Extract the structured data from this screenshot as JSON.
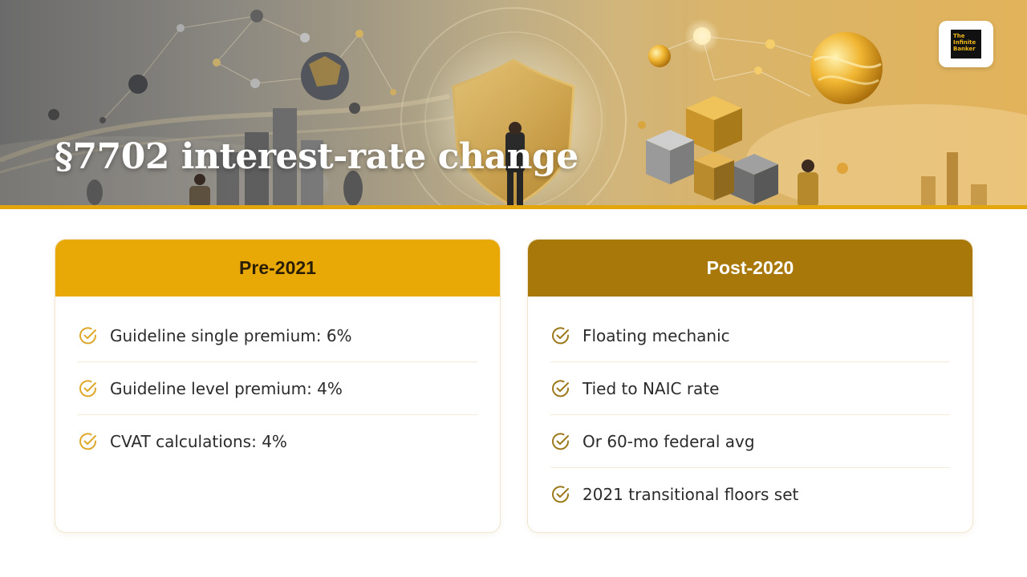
{
  "header": {
    "title": "§7702 interest-rate change",
    "logo_text": "The Infinite Banker"
  },
  "cards": [
    {
      "heading": "Pre-2021",
      "items": [
        "Guideline single premium: 6%",
        "Guideline level premium: 4%",
        "CVAT calculations: 4%"
      ]
    },
    {
      "heading": "Post-2020",
      "items": [
        "Floating mechanic",
        "Tied to NAIC rate",
        "Or 60-mo federal avg",
        "2021 transitional floors set"
      ]
    }
  ],
  "colors": {
    "accent": "#e8a806",
    "accent_dark": "#a8790a",
    "check_left": "#e0a82a",
    "check_right": "#9c7a1c"
  },
  "icons": {
    "check": "check-circle-icon"
  }
}
